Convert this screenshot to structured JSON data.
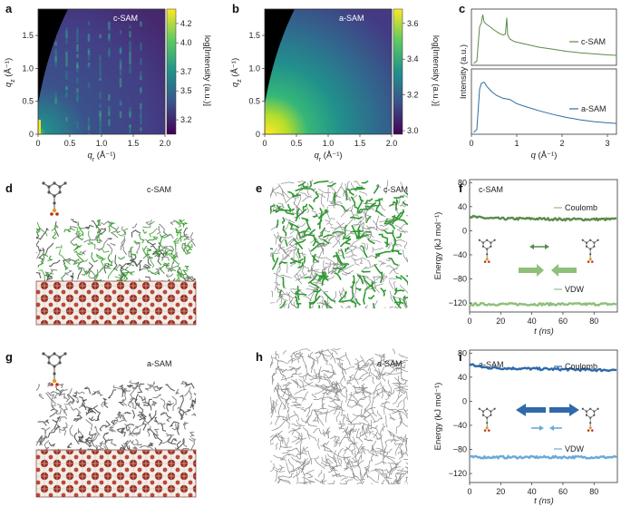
{
  "colors": {
    "green_dark": "#5b8a4a",
    "green_light": "#8fbf7a",
    "blue_dark": "#2e6aa8",
    "blue_light": "#6aaad8",
    "substrate": "#8b2a20"
  },
  "panels": {
    "a": {
      "letter": "a",
      "label": "c-SAM",
      "xlabel_q": "q",
      "xlabel_sub": "r",
      "xlabel_unit": " (Å⁻¹)",
      "ylabel_q": "q",
      "ylabel_sub": "z",
      "ylabel_unit": " (Å⁻¹)",
      "xticks": [
        "0",
        "0.5",
        "1.0",
        "1.5",
        "2.0"
      ],
      "yticks": [
        "0",
        "0.5",
        "1.0",
        "1.5"
      ],
      "cbar_ticks": [
        "4.2",
        "4.0",
        "3.7",
        "3.5",
        "3.2"
      ],
      "cbar_label": "log[Intensity (a.u.)]"
    },
    "b": {
      "letter": "b",
      "label": "a-SAM",
      "xlabel_q": "q",
      "xlabel_sub": "r",
      "xlabel_unit": " (Å⁻¹)",
      "ylabel_q": "q",
      "ylabel_sub": "z",
      "ylabel_unit": " (Å⁻¹)",
      "xticks": [
        "0",
        "0.5",
        "1.0",
        "1.5",
        "2.0"
      ],
      "yticks": [
        "0",
        "0.5",
        "1.0",
        "1.5"
      ],
      "cbar_ticks": [
        "3.6",
        "3.4",
        "3.2",
        "3.0"
      ],
      "cbar_label": "log[Intensity (a.u.)]"
    },
    "c": {
      "letter": "c",
      "series_top": "c-SAM",
      "series_bottom": "a-SAM",
      "ylabel": "Intensity (a.u.)",
      "xlabel_q": "q",
      "xlabel_unit": " (Å⁻¹)",
      "xticks": [
        "0",
        "1",
        "2",
        "3"
      ]
    },
    "d": {
      "letter": "d",
      "label": "c-SAM"
    },
    "e": {
      "letter": "e",
      "label": "c-SAM"
    },
    "f": {
      "letter": "f",
      "label": "c-SAM",
      "coulomb": "Coulomb",
      "vdw": "VDW",
      "ylabel": "Energy (kJ mol⁻¹)",
      "xlabel": "t (ns)",
      "yticks": [
        "80",
        "40",
        "0",
        "−40",
        "−80",
        "−120"
      ],
      "xticks": [
        "0",
        "20",
        "40",
        "60",
        "80"
      ]
    },
    "g": {
      "letter": "g",
      "label": "a-SAM"
    },
    "h": {
      "letter": "h",
      "label": "a-SAM"
    },
    "i": {
      "letter": "i",
      "label": "a-SAM",
      "coulomb": "Coulomb",
      "vdw": "VDW",
      "ylabel": "Energy (kJ mol⁻¹)",
      "xlabel": "t (ns)",
      "yticks": [
        "80",
        "40",
        "0",
        "−40",
        "−80",
        "−120"
      ],
      "xticks": [
        "0",
        "20",
        "40",
        "60",
        "80"
      ]
    }
  },
  "chart_data": [
    {
      "panel": "c",
      "type": "line",
      "title": "",
      "xlabel": "q (Å⁻¹)",
      "ylabel": "Intensity (a.u.)",
      "xlim": [
        0,
        3.2
      ],
      "series": [
        {
          "name": "c-SAM",
          "x": [
            0.05,
            0.12,
            0.18,
            0.22,
            0.25,
            0.28,
            0.32,
            0.4,
            0.5,
            0.6,
            0.7,
            0.75,
            0.78,
            0.8,
            0.85,
            0.95,
            1.2,
            1.5,
            1.8,
            2.1,
            2.4,
            2.7,
            3.0,
            3.2
          ],
          "y": [
            0.0,
            0.05,
            0.72,
            0.8,
            0.96,
            0.82,
            0.78,
            0.73,
            0.66,
            0.6,
            0.56,
            0.58,
            0.9,
            0.56,
            0.48,
            0.43,
            0.38,
            0.32,
            0.28,
            0.24,
            0.21,
            0.19,
            0.17,
            0.16
          ]
        },
        {
          "name": "a-SAM",
          "x": [
            0.05,
            0.12,
            0.18,
            0.22,
            0.28,
            0.35,
            0.45,
            0.55,
            0.7,
            0.85,
            1.0,
            1.2,
            1.5,
            1.8,
            2.1,
            2.4,
            2.7,
            3.0,
            3.2
          ],
          "y": [
            0.0,
            0.05,
            0.72,
            0.82,
            0.84,
            0.76,
            0.68,
            0.62,
            0.57,
            0.55,
            0.48,
            0.43,
            0.36,
            0.3,
            0.25,
            0.21,
            0.18,
            0.16,
            0.15
          ]
        }
      ]
    },
    {
      "panel": "f",
      "type": "line",
      "title": "",
      "xlabel": "t (ns)",
      "ylabel": "Energy (kJ mol⁻¹)",
      "xlim": [
        0,
        95
      ],
      "ylim": [
        -135,
        85
      ],
      "series": [
        {
          "name": "Coulomb",
          "x": [
            0,
            5,
            10,
            20,
            40,
            60,
            80,
            95
          ],
          "y": [
            24,
            22,
            21,
            20,
            20,
            19,
            19,
            19
          ]
        },
        {
          "name": "VDW",
          "x": [
            0,
            5,
            10,
            20,
            40,
            60,
            80,
            95
          ],
          "y": [
            -123,
            -122,
            -122,
            -122,
            -122,
            -122,
            -122,
            -122
          ]
        }
      ]
    },
    {
      "panel": "i",
      "type": "line",
      "title": "",
      "xlabel": "t (ns)",
      "ylabel": "Energy (kJ mol⁻¹)",
      "xlim": [
        0,
        95
      ],
      "ylim": [
        -135,
        85
      ],
      "series": [
        {
          "name": "Coulomb",
          "x": [
            0,
            5,
            10,
            20,
            40,
            60,
            80,
            95
          ],
          "y": [
            62,
            58,
            56,
            55,
            54,
            53,
            52,
            52
          ]
        },
        {
          "name": "VDW",
          "x": [
            0,
            5,
            10,
            20,
            40,
            60,
            80,
            95
          ],
          "y": [
            -93,
            -93,
            -93,
            -93,
            -93,
            -93,
            -93,
            -93
          ]
        }
      ]
    }
  ]
}
